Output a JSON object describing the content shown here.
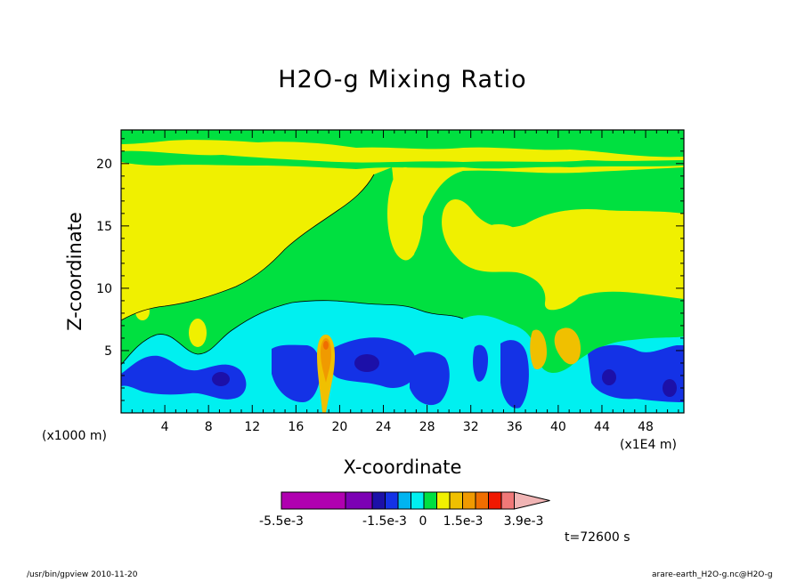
{
  "chart_data": {
    "type": "heatmap",
    "title": "H2O-g Mixing Ratio",
    "xlabel": "X-coordinate",
    "ylabel": "Z-coordinate",
    "x_unit_label": "(x1000 m)",
    "x_scale_label": "(x1E4 m)",
    "xlim": [
      0,
      51.5
    ],
    "ylim": [
      0,
      22.7
    ],
    "x_ticks": [
      4,
      8,
      12,
      16,
      20,
      24,
      28,
      32,
      36,
      40,
      44,
      48
    ],
    "y_ticks": [
      5,
      10,
      15,
      20
    ],
    "colorbar": {
      "colors": [
        "#b000b0",
        "#7c00b4",
        "#1c10a8",
        "#1432e6",
        "#00b4f0",
        "#00f0f0",
        "#00e040",
        "#f0f000",
        "#f0c000",
        "#f09a00",
        "#f06e00",
        "#f01800",
        "#f07878",
        "#f0b4b4"
      ],
      "labels": [
        "-5.5e-3",
        "-1.5e-3",
        "0",
        "1.5e-3",
        "3.9e-3"
      ]
    },
    "time_label": "t=72600 s",
    "footer_left": "/usr/bin/gpview   2010-11-20",
    "footer_right": "arare-earth_H2O-g.nc@H2O-g"
  }
}
